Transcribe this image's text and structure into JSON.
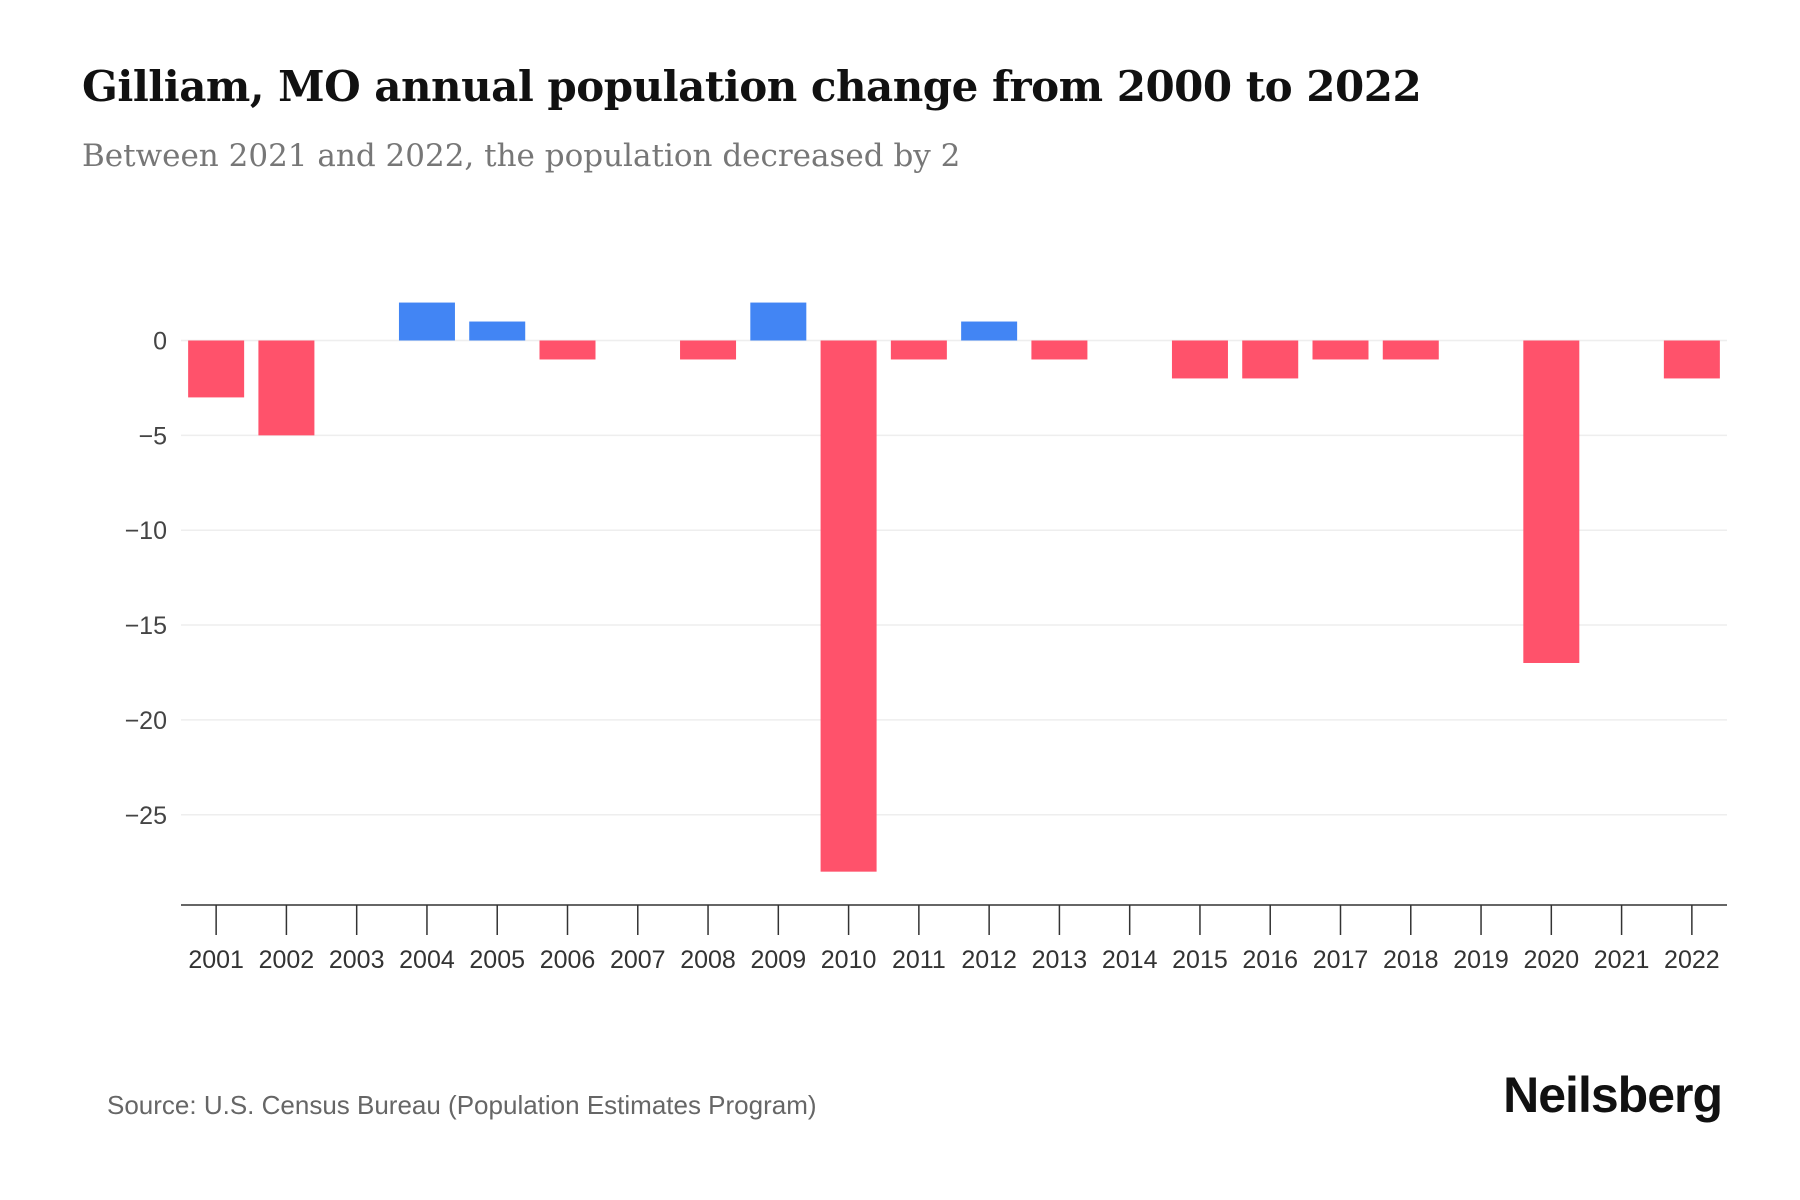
{
  "title": "Gilliam, MO annual population change from 2000 to 2022",
  "subtitle": "Between 2021 and 2022, the population decreased by 2",
  "source": "Source: U.S. Census Bureau (Population Estimates Program)",
  "logo": "Neilsberg",
  "colors": {
    "positive": "#4285f4",
    "negative": "#ff526b",
    "grid": "#eeeeee",
    "axis": "#333333"
  },
  "chart_data": {
    "type": "bar",
    "title": "Gilliam, MO annual population change from 2000 to 2022",
    "xlabel": "",
    "ylabel": "",
    "categories": [
      "2001",
      "2002",
      "2003",
      "2004",
      "2005",
      "2006",
      "2007",
      "2008",
      "2009",
      "2010",
      "2011",
      "2012",
      "2013",
      "2014",
      "2015",
      "2016",
      "2017",
      "2018",
      "2019",
      "2020",
      "2021",
      "2022"
    ],
    "values": [
      -3,
      -5,
      0,
      2,
      1,
      -1,
      0,
      -1,
      2,
      -28,
      -1,
      1,
      -1,
      0,
      -2,
      -2,
      -1,
      -1,
      0,
      -17,
      0,
      -2
    ],
    "yticks": [
      0,
      -5,
      -10,
      -15,
      -20,
      -25
    ],
    "ytick_labels": [
      "0",
      "−5",
      "−10",
      "−15",
      "−20",
      "−25"
    ],
    "ylim": [
      -29.8,
      2
    ],
    "grid": true,
    "legend": "none"
  }
}
